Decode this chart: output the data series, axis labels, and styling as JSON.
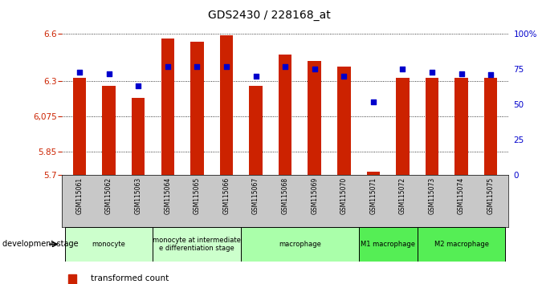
{
  "title": "GDS2430 / 228168_at",
  "samples": [
    "GSM115061",
    "GSM115062",
    "GSM115063",
    "GSM115064",
    "GSM115065",
    "GSM115066",
    "GSM115067",
    "GSM115068",
    "GSM115069",
    "GSM115070",
    "GSM115071",
    "GSM115072",
    "GSM115073",
    "GSM115074",
    "GSM115075"
  ],
  "bar_values": [
    6.32,
    6.27,
    6.19,
    6.57,
    6.55,
    6.59,
    6.27,
    6.47,
    6.43,
    6.39,
    5.72,
    6.32,
    6.32,
    6.32,
    6.32
  ],
  "percentile_values": [
    73,
    72,
    63,
    77,
    77,
    77,
    70,
    77,
    75,
    70,
    52,
    75,
    73,
    72,
    71
  ],
  "bar_color": "#cc2200",
  "dot_color": "#0000cc",
  "ymin": 5.7,
  "ymax": 6.6,
  "yticks": [
    5.7,
    5.85,
    6.075,
    6.3,
    6.6
  ],
  "ytick_labels": [
    "5.7",
    "5.85",
    "6,075",
    "6.3",
    "6.6"
  ],
  "y2min": 0,
  "y2max": 100,
  "y2ticks": [
    0,
    25,
    50,
    75,
    100
  ],
  "y2tick_labels": [
    "0",
    "25",
    "50",
    "75",
    "100%"
  ],
  "group_defs": [
    {
      "label": "monocyte",
      "start": 0,
      "end": 2,
      "color": "#ccffcc"
    },
    {
      "label": "monocyte at intermediate\ne differentiation stage",
      "start": 3,
      "end": 5,
      "color": "#ccffcc"
    },
    {
      "label": "macrophage",
      "start": 6,
      "end": 9,
      "color": "#aaffaa"
    },
    {
      "label": "M1 macrophage",
      "start": 10,
      "end": 11,
      "color": "#55ee55"
    },
    {
      "label": "M2 macrophage",
      "start": 12,
      "end": 14,
      "color": "#55ee55"
    }
  ],
  "xtick_bg": "#c8c8c8",
  "bg_color": "#ffffff",
  "label_color_left": "#cc2200",
  "label_color_right": "#0000cc"
}
